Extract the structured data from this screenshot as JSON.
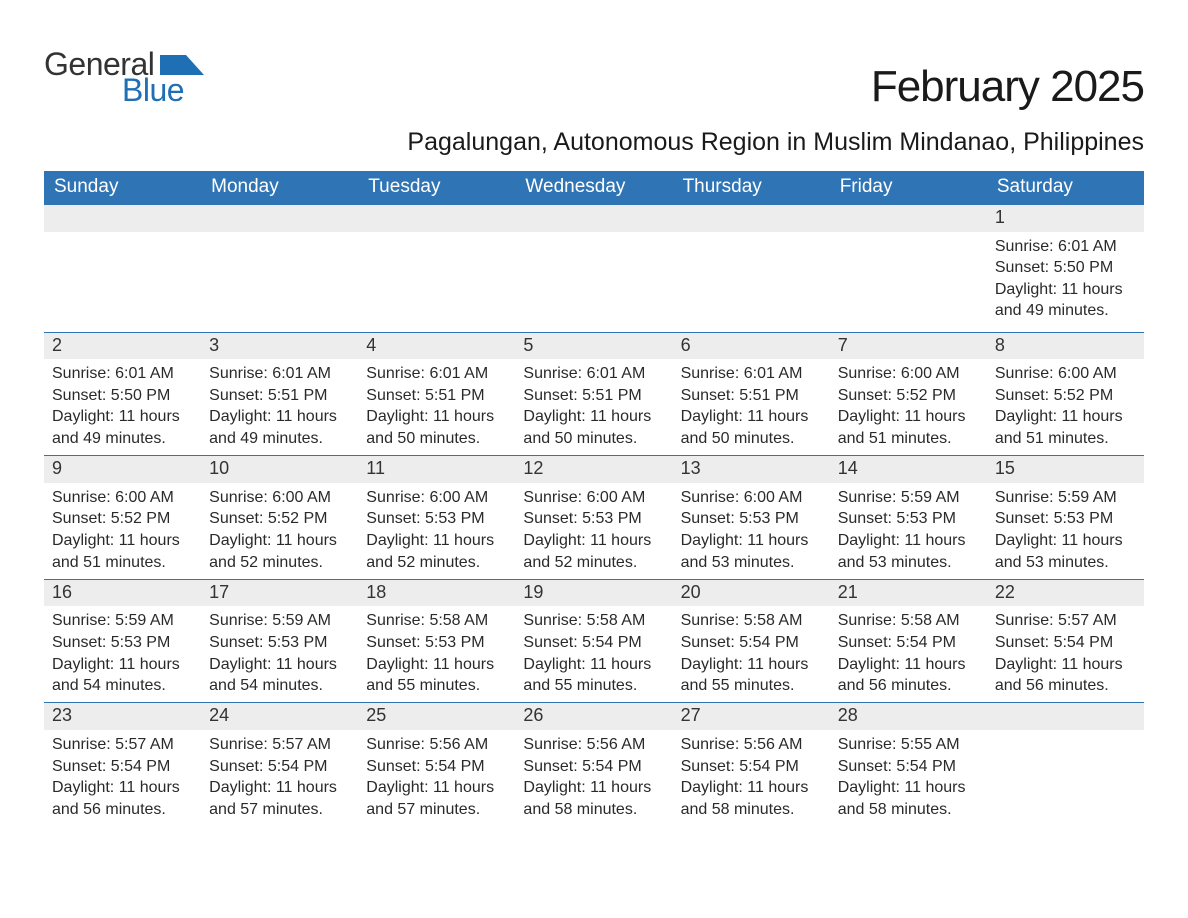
{
  "logo": {
    "text1": "General",
    "text2": "Blue"
  },
  "title": "February 2025",
  "subtitle": "Pagalungan, Autonomous Region in Muslim Mindanao, Philippines",
  "colors": {
    "header_blue": "#2f75b5",
    "logo_blue": "#1f6fb5",
    "row_gray": "#ededed",
    "background": "#ffffff",
    "text": "#333333"
  },
  "fonts": {
    "title_size_pt": 33,
    "subtitle_size_pt": 19,
    "dayheader_size_pt": 14,
    "daynum_size_pt": 14,
    "body_size_pt": 12
  },
  "day_headers": [
    "Sunday",
    "Monday",
    "Tuesday",
    "Wednesday",
    "Thursday",
    "Friday",
    "Saturday"
  ],
  "labels": {
    "sunrise": "Sunrise:",
    "sunset": "Sunset:",
    "daylight": "Daylight:"
  },
  "weeks": [
    [
      null,
      null,
      null,
      null,
      null,
      null,
      {
        "n": 1,
        "sunrise": "6:01 AM",
        "sunset": "5:50 PM",
        "daylight": "11 hours and 49 minutes."
      }
    ],
    [
      {
        "n": 2,
        "sunrise": "6:01 AM",
        "sunset": "5:50 PM",
        "daylight": "11 hours and 49 minutes."
      },
      {
        "n": 3,
        "sunrise": "6:01 AM",
        "sunset": "5:51 PM",
        "daylight": "11 hours and 49 minutes."
      },
      {
        "n": 4,
        "sunrise": "6:01 AM",
        "sunset": "5:51 PM",
        "daylight": "11 hours and 50 minutes."
      },
      {
        "n": 5,
        "sunrise": "6:01 AM",
        "sunset": "5:51 PM",
        "daylight": "11 hours and 50 minutes."
      },
      {
        "n": 6,
        "sunrise": "6:01 AM",
        "sunset": "5:51 PM",
        "daylight": "11 hours and 50 minutes."
      },
      {
        "n": 7,
        "sunrise": "6:00 AM",
        "sunset": "5:52 PM",
        "daylight": "11 hours and 51 minutes."
      },
      {
        "n": 8,
        "sunrise": "6:00 AM",
        "sunset": "5:52 PM",
        "daylight": "11 hours and 51 minutes."
      }
    ],
    [
      {
        "n": 9,
        "sunrise": "6:00 AM",
        "sunset": "5:52 PM",
        "daylight": "11 hours and 51 minutes."
      },
      {
        "n": 10,
        "sunrise": "6:00 AM",
        "sunset": "5:52 PM",
        "daylight": "11 hours and 52 minutes."
      },
      {
        "n": 11,
        "sunrise": "6:00 AM",
        "sunset": "5:53 PM",
        "daylight": "11 hours and 52 minutes."
      },
      {
        "n": 12,
        "sunrise": "6:00 AM",
        "sunset": "5:53 PM",
        "daylight": "11 hours and 52 minutes."
      },
      {
        "n": 13,
        "sunrise": "6:00 AM",
        "sunset": "5:53 PM",
        "daylight": "11 hours and 53 minutes."
      },
      {
        "n": 14,
        "sunrise": "5:59 AM",
        "sunset": "5:53 PM",
        "daylight": "11 hours and 53 minutes."
      },
      {
        "n": 15,
        "sunrise": "5:59 AM",
        "sunset": "5:53 PM",
        "daylight": "11 hours and 53 minutes."
      }
    ],
    [
      {
        "n": 16,
        "sunrise": "5:59 AM",
        "sunset": "5:53 PM",
        "daylight": "11 hours and 54 minutes."
      },
      {
        "n": 17,
        "sunrise": "5:59 AM",
        "sunset": "5:53 PM",
        "daylight": "11 hours and 54 minutes."
      },
      {
        "n": 18,
        "sunrise": "5:58 AM",
        "sunset": "5:53 PM",
        "daylight": "11 hours and 55 minutes."
      },
      {
        "n": 19,
        "sunrise": "5:58 AM",
        "sunset": "5:54 PM",
        "daylight": "11 hours and 55 minutes."
      },
      {
        "n": 20,
        "sunrise": "5:58 AM",
        "sunset": "5:54 PM",
        "daylight": "11 hours and 55 minutes."
      },
      {
        "n": 21,
        "sunrise": "5:58 AM",
        "sunset": "5:54 PM",
        "daylight": "11 hours and 56 minutes."
      },
      {
        "n": 22,
        "sunrise": "5:57 AM",
        "sunset": "5:54 PM",
        "daylight": "11 hours and 56 minutes."
      }
    ],
    [
      {
        "n": 23,
        "sunrise": "5:57 AM",
        "sunset": "5:54 PM",
        "daylight": "11 hours and 56 minutes."
      },
      {
        "n": 24,
        "sunrise": "5:57 AM",
        "sunset": "5:54 PM",
        "daylight": "11 hours and 57 minutes."
      },
      {
        "n": 25,
        "sunrise": "5:56 AM",
        "sunset": "5:54 PM",
        "daylight": "11 hours and 57 minutes."
      },
      {
        "n": 26,
        "sunrise": "5:56 AM",
        "sunset": "5:54 PM",
        "daylight": "11 hours and 58 minutes."
      },
      {
        "n": 27,
        "sunrise": "5:56 AM",
        "sunset": "5:54 PM",
        "daylight": "11 hours and 58 minutes."
      },
      {
        "n": 28,
        "sunrise": "5:55 AM",
        "sunset": "5:54 PM",
        "daylight": "11 hours and 58 minutes."
      },
      null
    ]
  ]
}
